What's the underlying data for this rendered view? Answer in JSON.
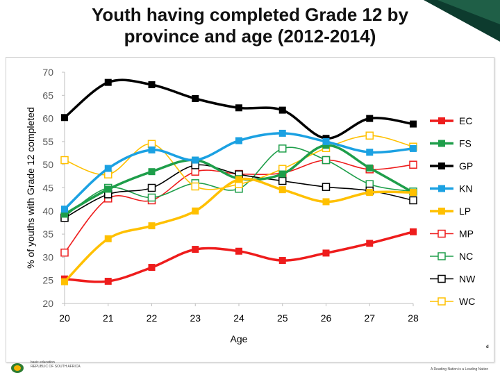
{
  "slide": {
    "title_line1": "Youth having completed Grade 12 by",
    "title_line2": "province and age (2012-2014)",
    "footer_left_line1": "basic education",
    "footer_left_line2": "REPUBLIC OF SOUTH AFRICA",
    "footer_right": "A Reading Nation is a Leading Nation",
    "footer_right_fragment": "d"
  },
  "chart_data": {
    "type": "line",
    "title": "",
    "xlabel": "Age",
    "ylabel": "% of youths with Grade 12 completed",
    "x": [
      20,
      21,
      22,
      23,
      24,
      25,
      26,
      27,
      28
    ],
    "ylim": [
      20,
      70
    ],
    "yticks": [
      20,
      25,
      30,
      35,
      40,
      45,
      50,
      55,
      60,
      65,
      70
    ],
    "grid": false,
    "legend_position": "right",
    "series": [
      {
        "name": "EC",
        "color": "#ee1c1c",
        "marker": "filled",
        "weight": "thick",
        "values": [
          25.3,
          24.8,
          27.8,
          31.7,
          31.3,
          29.3,
          30.9,
          33.0,
          35.5
        ]
      },
      {
        "name": "FS",
        "color": "#1e9e4a",
        "marker": "filled",
        "weight": "thick",
        "values": [
          39.3,
          44.7,
          48.5,
          51.0,
          47.0,
          48.0,
          54.2,
          49.3,
          44.0
        ]
      },
      {
        "name": "GP",
        "color": "#000000",
        "marker": "filled",
        "weight": "thick",
        "values": [
          60.2,
          67.8,
          67.3,
          64.3,
          62.3,
          61.8,
          55.7,
          60.0,
          58.8
        ]
      },
      {
        "name": "KN",
        "color": "#1ba1e2",
        "marker": "filled",
        "weight": "thick",
        "values": [
          40.4,
          49.2,
          53.2,
          51.0,
          55.2,
          56.8,
          55.0,
          52.7,
          53.5
        ]
      },
      {
        "name": "LP",
        "color": "#ffc000",
        "marker": "filled",
        "weight": "thick",
        "values": [
          24.7,
          34.0,
          36.8,
          40.0,
          46.8,
          44.6,
          42.0,
          44.0,
          44.0
        ]
      },
      {
        "name": "MP",
        "color": "#ee1c1c",
        "marker": "open",
        "weight": "thin",
        "values": [
          31.0,
          42.7,
          42.3,
          48.5,
          48.0,
          48.2,
          51.0,
          49.0,
          50.0
        ]
      },
      {
        "name": "NC",
        "color": "#1e9e4a",
        "marker": "open",
        "weight": "thin",
        "values": [
          38.8,
          45.0,
          42.9,
          46.0,
          44.8,
          53.5,
          51.0,
          45.8,
          44.2
        ]
      },
      {
        "name": "NW",
        "color": "#000000",
        "marker": "open",
        "weight": "thin",
        "values": [
          38.5,
          43.6,
          45.0,
          49.9,
          47.9,
          46.5,
          45.2,
          44.4,
          42.3
        ]
      },
      {
        "name": "WC",
        "color": "#ffc000",
        "marker": "open",
        "weight": "thin",
        "values": [
          51.0,
          47.9,
          54.5,
          45.3,
          45.8,
          49.1,
          53.6,
          56.3,
          53.9
        ]
      }
    ]
  }
}
